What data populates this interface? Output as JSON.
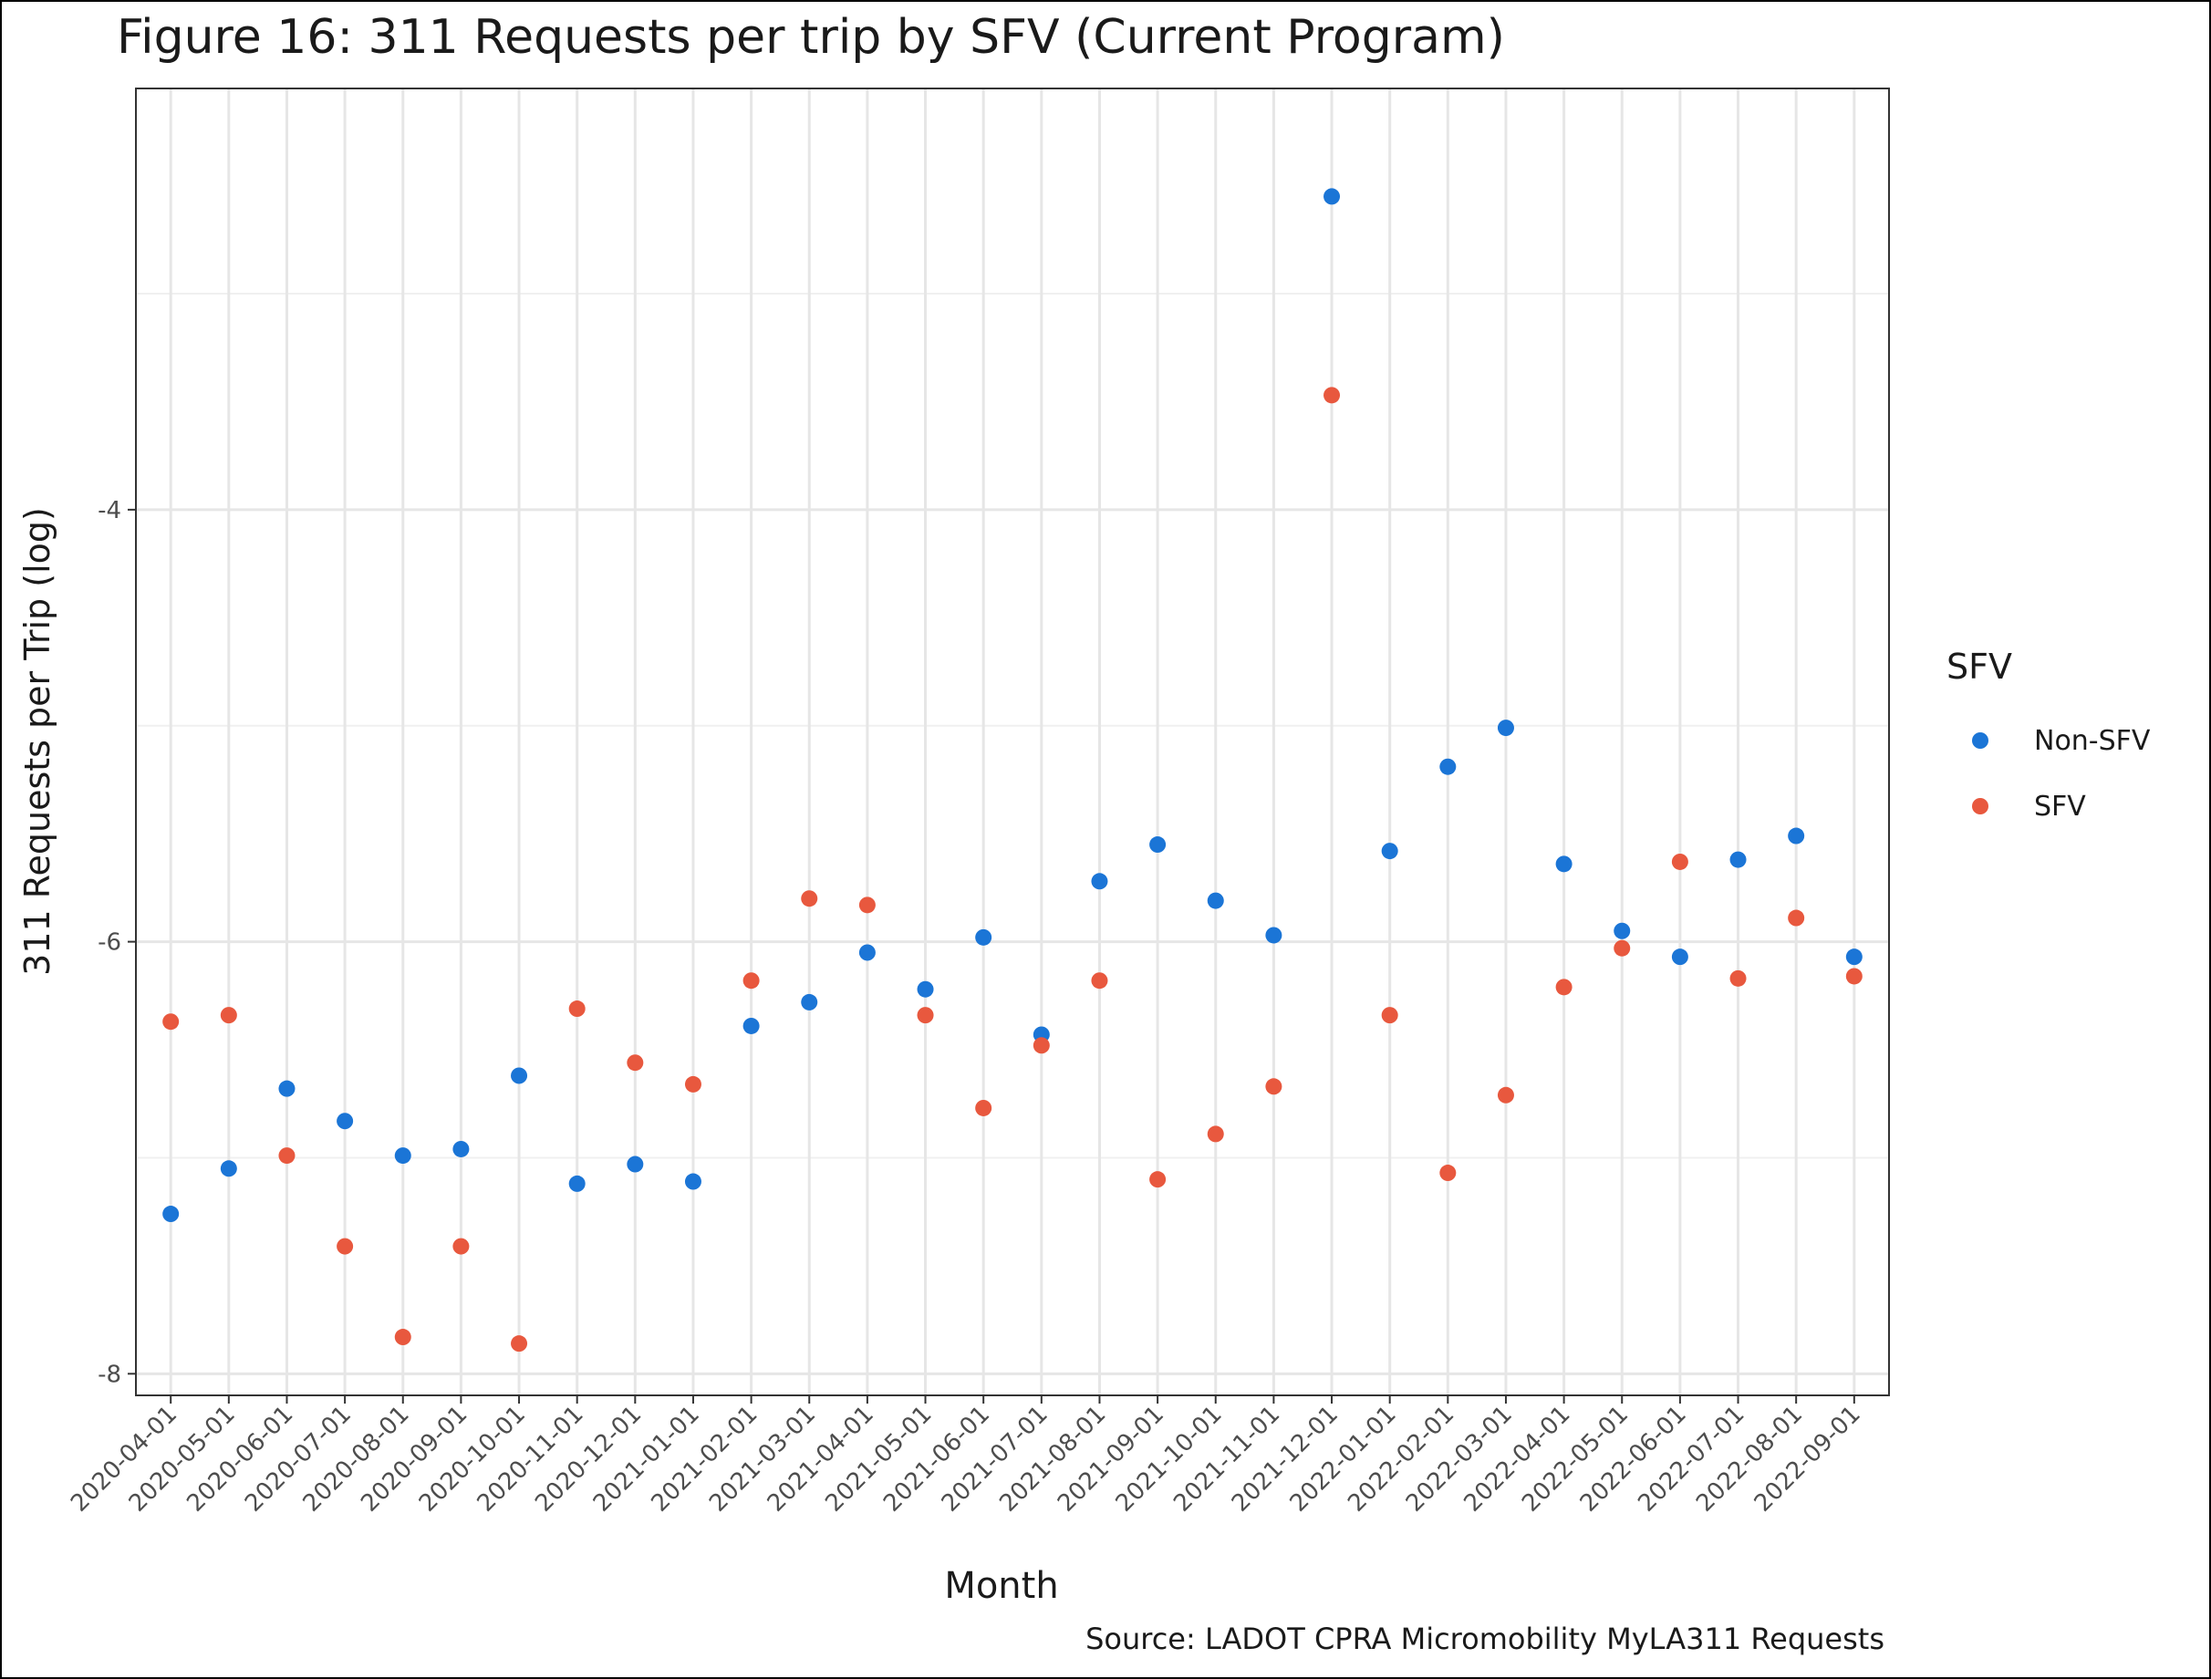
{
  "chart_data": {
    "type": "scatter",
    "title": "Figure 16: 311 Requests per trip by SFV (Current Program)",
    "xlabel": "Month",
    "ylabel": "311 Requests per Trip (log)",
    "caption": "Source: LADOT CPRA Micromobility MyLA311 Requests",
    "ylim": [
      -8.1,
      -2.05
    ],
    "y_ticks": [
      -8,
      -6,
      -4
    ],
    "y_tick_labels": [
      "-8",
      "-6",
      "-4"
    ],
    "grid": true,
    "legend": {
      "title": "SFV",
      "position": "right"
    },
    "categories": [
      "2020-04-01",
      "2020-05-01",
      "2020-06-01",
      "2020-07-01",
      "2020-08-01",
      "2020-09-01",
      "2020-10-01",
      "2020-11-01",
      "2020-12-01",
      "2021-01-01",
      "2021-02-01",
      "2021-03-01",
      "2021-04-01",
      "2021-05-01",
      "2021-06-01",
      "2021-07-01",
      "2021-08-01",
      "2021-09-01",
      "2021-10-01",
      "2021-11-01",
      "2021-12-01",
      "2022-01-01",
      "2022-02-01",
      "2022-03-01",
      "2022-04-01",
      "2022-05-01",
      "2022-06-01",
      "2022-07-01",
      "2022-08-01",
      "2022-09-01"
    ],
    "series": [
      {
        "name": "Non-SFV",
        "color": "#1b75d6",
        "values": [
          -7.26,
          -7.05,
          -6.68,
          -6.83,
          -6.99,
          -6.96,
          -6.62,
          -7.12,
          -7.03,
          -7.11,
          -6.39,
          -6.28,
          -6.05,
          -6.22,
          -5.98,
          -6.43,
          -5.72,
          -5.55,
          -5.81,
          -5.97,
          -2.55,
          -5.58,
          -5.19,
          -5.01,
          -5.64,
          -5.95,
          -6.07,
          -5.62,
          -5.51,
          -6.07
        ]
      },
      {
        "name": "SFV",
        "color": "#e8583e",
        "values": [
          -6.37,
          -6.34,
          -6.99,
          -7.41,
          -7.83,
          -7.41,
          -7.86,
          -6.31,
          -6.56,
          -6.66,
          -6.18,
          -5.8,
          -5.83,
          -6.34,
          -6.77,
          -6.48,
          -6.18,
          -7.1,
          -6.89,
          -6.67,
          -3.47,
          -6.34,
          -7.07,
          -6.71,
          -6.21,
          -6.03,
          -5.63,
          -6.17,
          -5.89,
          -6.16
        ]
      }
    ]
  }
}
